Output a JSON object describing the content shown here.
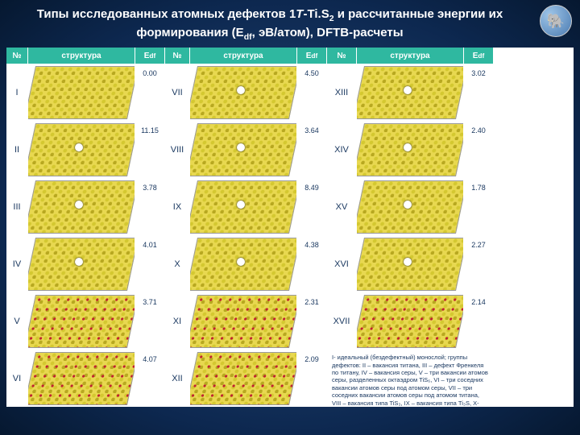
{
  "title_html": "Типы исследованных атомных дефектов 1<i>T</i>-Ti.S<sub>2</sub> и рассчитанные энергии их формирования (E<sub>df</sub>, эВ/атом), DFTB-расчеты",
  "badge_icon": "🐘",
  "headers": {
    "num": "№",
    "struct": "структура",
    "edf": "E_df"
  },
  "rows": [
    {
      "n1": "I",
      "e1": "0.00",
      "n2": "VII",
      "e2": "4.50",
      "n3": "XIII",
      "e3": "3.02"
    },
    {
      "n1": "II",
      "e1": "11.15",
      "n2": "VIII",
      "e2": "3.64",
      "n3": "XIV",
      "e3": "2.40"
    },
    {
      "n1": "III",
      "e1": "3.78",
      "n2": "IX",
      "e2": "8.49",
      "n3": "XV",
      "e3": "1.78"
    },
    {
      "n1": "IV",
      "e1": "4.01",
      "n2": "X",
      "e2": "4.38",
      "n3": "XVI",
      "e3": "2.27"
    },
    {
      "n1": "V",
      "e1": "3.71",
      "n2": "XI",
      "e2": "2.31",
      "n3": "XVII",
      "e3": "2.14"
    },
    {
      "n1": "VI",
      "e1": "4.07",
      "n2": "XII",
      "e2": "2.09",
      "n3": "",
      "e3": ""
    }
  ],
  "footnote": "I- идеальный (бездефектный) монослой; группы дефектов: II – вакансия титана, III – дефект Френкеля по титану, IV – вакансия серы, V – три вакансии атомов серы, разделенных октаэдром TiS₆, VI – три соседних вакансии атомов серы под атомом серы, VII – три соседних вакансии атомов серы под атомом титана, VIII – вакансия типа TiS₃, IX – вакансия типа Ti₃S, X-XVII – различные типы изменения",
  "colors": {
    "header_bg": "#2fb8a0",
    "cell_bg": "#ffffff",
    "text": "#1a3860",
    "lattice_yellow": "#e8d850",
    "lattice_dot": "#d4c830",
    "lattice_red": "#c02030"
  },
  "structure_types": [
    "plain",
    "defect1",
    "defect1",
    "defect1",
    "defect1",
    "defect1",
    "defect1",
    "defect1",
    "defect1",
    "defect1",
    "defect1",
    "defect1",
    "red",
    "red",
    "red",
    "red",
    "red"
  ]
}
